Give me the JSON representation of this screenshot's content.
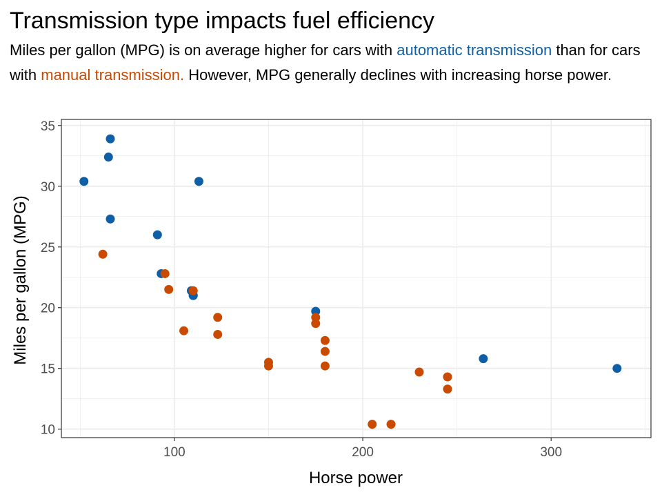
{
  "colors": {
    "automatic": "#0F5FA6",
    "manual": "#C94A00",
    "grid": "#ebebeb",
    "panel_border": "#333333",
    "tick_text": "#4d4d4d"
  },
  "subtitle": {
    "part1": "Miles per gallon (MPG) is on average higher for cars with ",
    "automatic": "automatic transmission",
    "part2": " than for cars with ",
    "manual": "manual transmission.",
    "part3": " However, MPG generally declines with increasing horse power."
  },
  "chart_data": {
    "type": "scatter",
    "title": "Transmission type impacts fuel efficiency",
    "xlabel": "Horse power",
    "ylabel": "Miles per gallon (MPG)",
    "xlim": [
      40,
      353
    ],
    "ylim": [
      9.3,
      35.5
    ],
    "xticks": [
      100,
      200,
      300
    ],
    "yticks": [
      10,
      15,
      20,
      25,
      30,
      35
    ],
    "grid": true,
    "legend": "none",
    "series": [
      {
        "name": "automatic transmission",
        "color_key": "automatic",
        "points": [
          [
            66,
            33.9
          ],
          [
            52,
            30.4
          ],
          [
            113,
            30.4
          ],
          [
            65,
            32.4
          ],
          [
            66,
            27.3
          ],
          [
            91,
            26.0
          ],
          [
            93,
            22.8
          ],
          [
            109,
            21.4
          ],
          [
            110,
            21.0
          ],
          [
            110,
            21.0
          ],
          [
            175,
            19.7
          ],
          [
            264,
            15.8
          ],
          [
            335,
            15.0
          ]
        ]
      },
      {
        "name": "manual transmission",
        "color_key": "manual",
        "points": [
          [
            62,
            24.4
          ],
          [
            95,
            22.8
          ],
          [
            97,
            21.5
          ],
          [
            110,
            21.4
          ],
          [
            105,
            18.1
          ],
          [
            123,
            19.2
          ],
          [
            123,
            17.8
          ],
          [
            150,
            15.5
          ],
          [
            150,
            15.2
          ],
          [
            175,
            19.2
          ],
          [
            175,
            18.7
          ],
          [
            180,
            17.3
          ],
          [
            180,
            16.4
          ],
          [
            180,
            15.2
          ],
          [
            205,
            10.4
          ],
          [
            215,
            10.4
          ],
          [
            230,
            14.7
          ],
          [
            245,
            14.3
          ],
          [
            245,
            13.3
          ]
        ]
      }
    ]
  }
}
